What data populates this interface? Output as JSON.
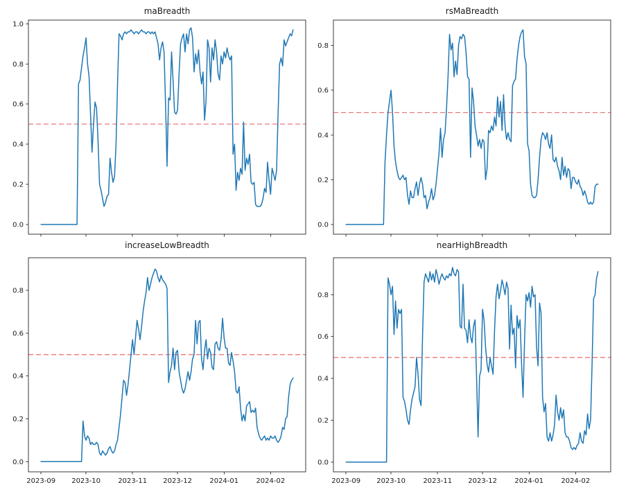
{
  "figure": {
    "background": "#ffffff",
    "line_color": "#1f77b4",
    "threshold_color": "#e87878",
    "spine_color": "#3a3a3a",
    "text_color": "#1a1a1a"
  },
  "x_axis": {
    "unit": "days since 2023-09-01",
    "tick_labels": [
      "2023-09",
      "2023-10",
      "2023-11",
      "2023-12",
      "2024-01",
      "2024-02"
    ],
    "tick_days": [
      0,
      30,
      61,
      91,
      122,
      153
    ],
    "xlim_days": [
      -8.4,
      176.4
    ]
  },
  "chart_data": [
    {
      "type": "line",
      "title": "maBreadth",
      "position": "top-left",
      "threshold": 0.5,
      "ylim": [
        -0.0485,
        1.0185
      ],
      "yticks": [
        0.0,
        0.2,
        0.4,
        0.6,
        0.8,
        1.0
      ],
      "show_x_labels": false,
      "x_start_day": 0,
      "x_step_days": 1,
      "values": [
        0,
        0,
        0,
        0,
        0,
        0,
        0,
        0,
        0,
        0,
        0,
        0,
        0,
        0,
        0,
        0,
        0,
        0,
        0,
        0,
        0,
        0,
        0,
        0,
        0,
        0.7,
        0.72,
        0.78,
        0.84,
        0.88,
        0.93,
        0.8,
        0.74,
        0.55,
        0.36,
        0.5,
        0.61,
        0.58,
        0.42,
        0.2,
        0.17,
        0.13,
        0.09,
        0.11,
        0.14,
        0.15,
        0.33,
        0.26,
        0.21,
        0.24,
        0.4,
        0.7,
        0.95,
        0.94,
        0.92,
        0.95,
        0.96,
        0.95,
        0.96,
        0.96,
        0.97,
        0.96,
        0.95,
        0.96,
        0.96,
        0.95,
        0.96,
        0.97,
        0.96,
        0.96,
        0.95,
        0.96,
        0.96,
        0.95,
        0.96,
        0.95,
        0.96,
        0.93,
        0.9,
        0.82,
        0.88,
        0.91,
        0.86,
        0.6,
        0.29,
        0.63,
        0.62,
        0.86,
        0.72,
        0.56,
        0.55,
        0.57,
        0.75,
        0.9,
        0.93,
        0.95,
        0.86,
        0.95,
        0.9,
        0.97,
        0.98,
        0.93,
        0.76,
        0.85,
        0.8,
        0.87,
        0.76,
        0.7,
        0.76,
        0.52,
        0.62,
        0.92,
        0.88,
        0.71,
        0.88,
        0.82,
        0.92,
        0.86,
        0.75,
        0.72,
        0.84,
        0.8,
        0.86,
        0.83,
        0.88,
        0.84,
        0.82,
        0.84,
        0.35,
        0.4,
        0.17,
        0.26,
        0.22,
        0.28,
        0.25,
        0.51,
        0.27,
        0.33,
        0.3,
        0.35,
        0.21,
        0.2,
        0.21,
        0.1,
        0.09,
        0.09,
        0.09,
        0.1,
        0.13,
        0.18,
        0.16,
        0.31,
        0.22,
        0.15,
        0.28,
        0.25,
        0.22,
        0.27,
        0.55,
        0.8,
        0.83,
        0.79,
        0.92,
        0.89,
        0.91,
        0.93,
        0.95,
        0.94,
        0.97
      ]
    },
    {
      "type": "line",
      "title": "rsMaBreadth",
      "position": "top-right",
      "threshold": 0.5,
      "ylim": [
        -0.0435,
        0.9135
      ],
      "yticks": [
        0.0,
        0.2,
        0.4,
        0.6,
        0.8
      ],
      "show_x_labels": false,
      "x_start_day": 0,
      "x_step_days": 1,
      "values": [
        0,
        0,
        0,
        0,
        0,
        0,
        0,
        0,
        0,
        0,
        0,
        0,
        0,
        0,
        0,
        0,
        0,
        0,
        0,
        0,
        0,
        0,
        0,
        0,
        0,
        0,
        0.28,
        0.4,
        0.5,
        0.55,
        0.6,
        0.5,
        0.35,
        0.28,
        0.24,
        0.21,
        0.2,
        0.21,
        0.22,
        0.2,
        0.21,
        0.13,
        0.09,
        0.15,
        0.12,
        0.12,
        0.16,
        0.19,
        0.13,
        0.18,
        0.21,
        0.18,
        0.12,
        0.13,
        0.07,
        0.1,
        0.12,
        0.16,
        0.11,
        0.13,
        0.18,
        0.25,
        0.32,
        0.43,
        0.3,
        0.38,
        0.41,
        0.52,
        0.66,
        0.85,
        0.78,
        0.81,
        0.66,
        0.73,
        0.67,
        0.8,
        0.84,
        0.83,
        0.85,
        0.84,
        0.77,
        0.66,
        0.65,
        0.3,
        0.61,
        0.55,
        0.44,
        0.4,
        0.35,
        0.38,
        0.34,
        0.38,
        0.37,
        0.2,
        0.25,
        0.42,
        0.41,
        0.44,
        0.42,
        0.48,
        0.44,
        0.57,
        0.48,
        0.55,
        0.42,
        0.58,
        0.44,
        0.38,
        0.41,
        0.38,
        0.37,
        0.62,
        0.64,
        0.65,
        0.74,
        0.8,
        0.84,
        0.86,
        0.87,
        0.75,
        0.72,
        0.36,
        0.33,
        0.18,
        0.13,
        0.12,
        0.12,
        0.13,
        0.2,
        0.3,
        0.38,
        0.41,
        0.4,
        0.38,
        0.41,
        0.36,
        0.34,
        0.4,
        0.29,
        0.28,
        0.3,
        0.26,
        0.24,
        0.2,
        0.3,
        0.22,
        0.26,
        0.21,
        0.25,
        0.24,
        0.16,
        0.21,
        0.21,
        0.19,
        0.18,
        0.2,
        0.17,
        0.16,
        0.13,
        0.15,
        0.13,
        0.1,
        0.09,
        0.1,
        0.09,
        0.1,
        0.17,
        0.18,
        0.18
      ]
    },
    {
      "type": "line",
      "title": "increaseLowBreadth",
      "position": "bottom-left",
      "threshold": 0.5,
      "ylim": [
        -0.0477,
        0.9527
      ],
      "yticks": [
        0.0,
        0.2,
        0.4,
        0.6,
        0.8
      ],
      "show_x_labels": true,
      "x_start_day": 0,
      "x_step_days": 1,
      "values": [
        0,
        0,
        0,
        0,
        0,
        0,
        0,
        0,
        0,
        0,
        0,
        0,
        0,
        0,
        0,
        0,
        0,
        0,
        0,
        0,
        0,
        0,
        0,
        0,
        0,
        0,
        0,
        0,
        0.19,
        0.12,
        0.1,
        0.12,
        0.11,
        0.08,
        0.09,
        0.08,
        0.08,
        0.09,
        0.08,
        0.04,
        0.03,
        0.05,
        0.04,
        0.03,
        0.04,
        0.06,
        0.07,
        0.05,
        0.04,
        0.05,
        0.08,
        0.1,
        0.16,
        0.22,
        0.3,
        0.38,
        0.37,
        0.31,
        0.36,
        0.43,
        0.5,
        0.57,
        0.5,
        0.58,
        0.66,
        0.62,
        0.57,
        0.63,
        0.7,
        0.75,
        0.79,
        0.86,
        0.8,
        0.83,
        0.86,
        0.88,
        0.9,
        0.89,
        0.86,
        0.84,
        0.87,
        0.85,
        0.84,
        0.83,
        0.81,
        0.37,
        0.42,
        0.45,
        0.53,
        0.43,
        0.51,
        0.52,
        0.42,
        0.38,
        0.34,
        0.32,
        0.34,
        0.38,
        0.42,
        0.38,
        0.42,
        0.48,
        0.5,
        0.66,
        0.55,
        0.65,
        0.66,
        0.48,
        0.43,
        0.52,
        0.57,
        0.48,
        0.53,
        0.51,
        0.44,
        0.43,
        0.55,
        0.56,
        0.53,
        0.52,
        0.57,
        0.67,
        0.58,
        0.53,
        0.53,
        0.46,
        0.45,
        0.51,
        0.47,
        0.42,
        0.33,
        0.32,
        0.35,
        0.25,
        0.19,
        0.22,
        0.19,
        0.26,
        0.27,
        0.28,
        0.23,
        0.24,
        0.23,
        0.25,
        0.16,
        0.13,
        0.11,
        0.1,
        0.11,
        0.12,
        0.1,
        0.11,
        0.1,
        0.12,
        0.11,
        0.11,
        0.12,
        0.1,
        0.09,
        0.1,
        0.12,
        0.16,
        0.15,
        0.2,
        0.21,
        0.3,
        0.36,
        0.38,
        0.39
      ]
    },
    {
      "type": "line",
      "title": "nearHighBreadth",
      "position": "bottom-right",
      "threshold": 0.5,
      "ylim": [
        -0.0465,
        0.9765
      ],
      "yticks": [
        0.0,
        0.2,
        0.4,
        0.6,
        0.8
      ],
      "show_x_labels": true,
      "x_start_day": 0,
      "x_step_days": 1,
      "values": [
        0,
        0,
        0,
        0,
        0,
        0,
        0,
        0,
        0,
        0,
        0,
        0,
        0,
        0,
        0,
        0,
        0,
        0,
        0,
        0,
        0,
        0,
        0,
        0,
        0,
        0,
        0,
        0,
        0.88,
        0.85,
        0.8,
        0.84,
        0.61,
        0.77,
        0.64,
        0.73,
        0.71,
        0.73,
        0.31,
        0.29,
        0.25,
        0.2,
        0.18,
        0.25,
        0.3,
        0.33,
        0.36,
        0.5,
        0.42,
        0.3,
        0.27,
        0.6,
        0.86,
        0.9,
        0.88,
        0.86,
        0.91,
        0.87,
        0.9,
        0.86,
        0.92,
        0.89,
        0.85,
        0.88,
        0.9,
        0.88,
        0.87,
        0.89,
        0.88,
        0.9,
        0.89,
        0.93,
        0.9,
        0.89,
        0.92,
        0.91,
        0.65,
        0.64,
        0.85,
        0.64,
        0.63,
        0.57,
        0.68,
        0.6,
        0.57,
        0.65,
        0.68,
        0.41,
        0.12,
        0.41,
        0.44,
        0.73,
        0.68,
        0.55,
        0.47,
        0.43,
        0.5,
        0.46,
        0.42,
        0.63,
        0.79,
        0.85,
        0.78,
        0.82,
        0.87,
        0.84,
        0.8,
        0.86,
        0.83,
        0.54,
        0.75,
        0.61,
        0.64,
        0.45,
        0.7,
        0.64,
        0.68,
        0.47,
        0.31,
        0.58,
        0.8,
        0.77,
        0.81,
        0.74,
        0.84,
        0.79,
        0.8,
        0.55,
        0.46,
        0.76,
        0.71,
        0.31,
        0.24,
        0.28,
        0.12,
        0.1,
        0.14,
        0.1,
        0.13,
        0.18,
        0.32,
        0.24,
        0.2,
        0.26,
        0.21,
        0.25,
        0.14,
        0.12,
        0.12,
        0.1,
        0.07,
        0.06,
        0.07,
        0.06,
        0.08,
        0.09,
        0.14,
        0.1,
        0.09,
        0.15,
        0.13,
        0.23,
        0.16,
        0.2,
        0.47,
        0.78,
        0.8,
        0.88,
        0.91
      ]
    }
  ]
}
